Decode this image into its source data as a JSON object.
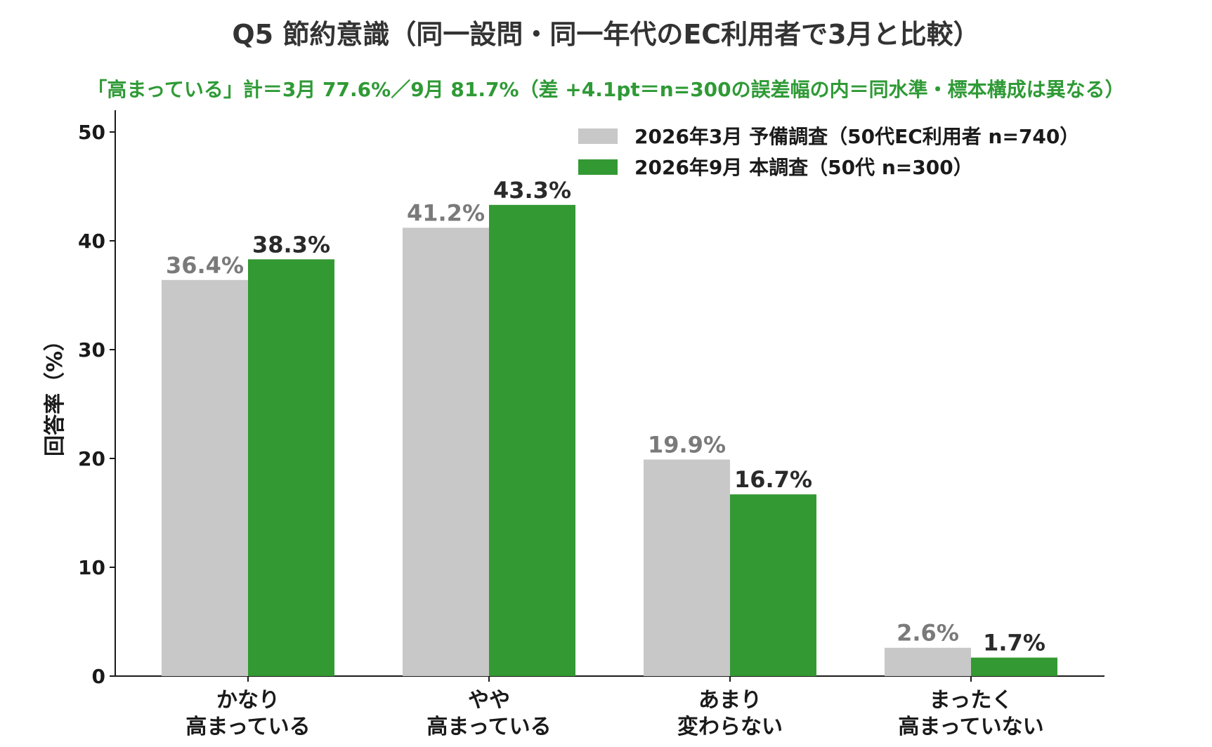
{
  "chart_data": {
    "type": "bar",
    "title": "Q5 節約意識（同一設問・同一年代のEC利用者で3月と比較）",
    "subtitle": "「高まっている」計＝3月 77.6%／9月 81.7%（差 +4.1pt＝n=300の誤差幅の内＝同水準・標本構成は異なる）",
    "ylabel": "回答率（%）",
    "xlabel": "",
    "ylim": [
      0,
      52
    ],
    "yticks": [
      0,
      10,
      20,
      30,
      40,
      50
    ],
    "categories": [
      [
        "かなり",
        "高まっている"
      ],
      [
        "やや",
        "高まっている"
      ],
      [
        "あまり",
        "変わらない"
      ],
      [
        "まったく",
        "高まっていない"
      ]
    ],
    "series": [
      {
        "name": "2026年3月 予備調査（50代EC利用者 n=740）",
        "values": [
          36.4,
          41.2,
          19.9,
          2.6
        ],
        "labels": [
          "36.4%",
          "41.2%",
          "19.9%",
          "2.6%"
        ],
        "color": "#c8c8c8"
      },
      {
        "name": "2026年9月 本調査（50代 n=300）",
        "values": [
          38.3,
          43.3,
          16.7,
          1.7
        ],
        "labels": [
          "38.3%",
          "43.3%",
          "16.7%",
          "1.7%"
        ],
        "color": "#339933"
      }
    ],
    "legend_position": "top-right",
    "grid": false
  }
}
